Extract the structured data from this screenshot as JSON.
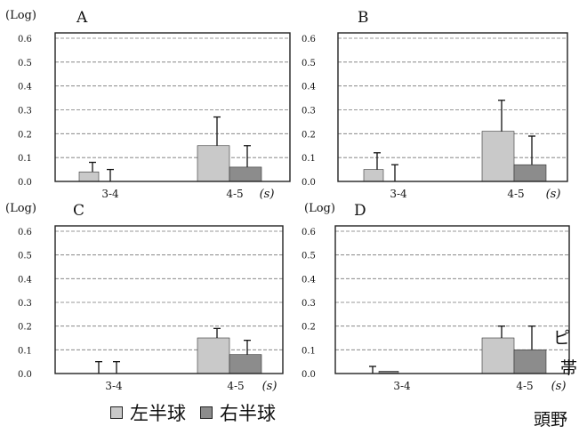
{
  "colors": {
    "left": "#c9c9c9",
    "right": "#8c8c8c",
    "axis": "#222222",
    "grid": "#777777",
    "background": "#ffffff"
  },
  "side_text": [
    "ピ",
    "帯",
    "頭野"
  ],
  "legend": [
    {
      "label": "左半球",
      "color": "#c9c9c9"
    },
    {
      "label": "右半球",
      "color": "#8c8c8c"
    }
  ],
  "chart_data": [
    {
      "type": "bar",
      "panel": "A",
      "unit_label": "(Log)",
      "x_unit": "(s)",
      "ylim": [
        0,
        0.6
      ],
      "yticks": [
        "0.0",
        "0.1",
        "0.2",
        "0.3",
        "0.4",
        "0.5",
        "0.6"
      ],
      "grid": true,
      "categories": [
        "3-4",
        "4-5"
      ],
      "series": [
        {
          "name": "左半球",
          "values": [
            0.04,
            0.15
          ],
          "errors": [
            0.04,
            0.12
          ]
        },
        {
          "name": "右半球",
          "values": [
            0.0,
            0.06
          ],
          "errors": [
            0.05,
            0.09
          ]
        }
      ]
    },
    {
      "type": "bar",
      "panel": "B",
      "unit_label": "",
      "x_unit": "(s)",
      "ylim": [
        0,
        0.6
      ],
      "yticks": [
        "0.0",
        "0.1",
        "0.2",
        "0.3",
        "0.4",
        "0.5",
        "0.6"
      ],
      "grid": true,
      "categories": [
        "3-4",
        "4-5"
      ],
      "series": [
        {
          "name": "左半球",
          "values": [
            0.05,
            0.21
          ],
          "errors": [
            0.07,
            0.13
          ]
        },
        {
          "name": "右半球",
          "values": [
            0.0,
            0.07
          ],
          "errors": [
            0.07,
            0.12
          ]
        }
      ]
    },
    {
      "type": "bar",
      "panel": "C",
      "unit_label": "(Log)",
      "x_unit": "(s)",
      "ylim": [
        0,
        0.6
      ],
      "yticks": [
        "0.0",
        "0.1",
        "0.2",
        "0.3",
        "0.4",
        "0.5",
        "0.6"
      ],
      "grid": true,
      "categories": [
        "3-4",
        "4-5"
      ],
      "series": [
        {
          "name": "左半球",
          "values": [
            0.0,
            0.15
          ],
          "errors": [
            0.05,
            0.04
          ]
        },
        {
          "name": "右半球",
          "values": [
            0.0,
            0.08
          ],
          "errors": [
            0.05,
            0.06
          ]
        }
      ]
    },
    {
      "type": "bar",
      "panel": "D",
      "unit_label": "(Log)",
      "x_unit": "(s)",
      "ylim": [
        0,
        0.6
      ],
      "yticks": [
        "0.0",
        "0.1",
        "0.2",
        "0.3",
        "0.4",
        "0.5",
        "0.6"
      ],
      "grid": true,
      "categories": [
        "3-4",
        "4-5"
      ],
      "series": [
        {
          "name": "左半球",
          "values": [
            0.0,
            0.15
          ],
          "errors": [
            0.03,
            0.05
          ]
        },
        {
          "name": "右半球",
          "values": [
            0.01,
            0.1
          ],
          "errors": [
            0.0,
            0.1
          ]
        }
      ]
    }
  ]
}
